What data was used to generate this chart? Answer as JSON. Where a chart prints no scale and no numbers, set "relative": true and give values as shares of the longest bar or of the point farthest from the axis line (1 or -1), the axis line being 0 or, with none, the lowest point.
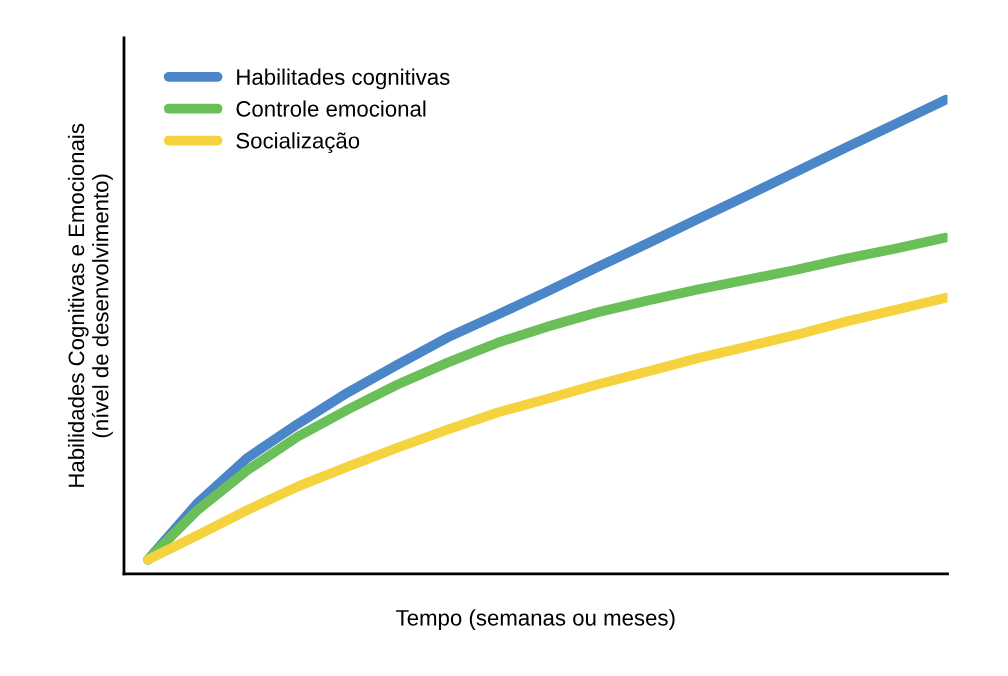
{
  "chart_data": {
    "type": "line",
    "relative": true,
    "xlabel": "Tempo (semanas ou meses)",
    "ylabel": "Habilidades Cognitivas e Emocionais\n(nível de desenvolvimento)",
    "categories": [
      null,
      null,
      null,
      null,
      null,
      null,
      null,
      null,
      null,
      null,
      null,
      null,
      null,
      null,
      null,
      null,
      null
    ],
    "series": [
      {
        "name": "Habilitades cognitivas",
        "color": "#4a86c8",
        "values": [
          0.03,
          0.15,
          0.245,
          0.316,
          0.382,
          0.441,
          0.498,
          0.546,
          0.595,
          0.646,
          0.696,
          0.747,
          0.797,
          0.848,
          0.899,
          0.949,
          1.0
        ]
      },
      {
        "name": "Controle emocional",
        "color": "#6bbf59",
        "values": [
          0.03,
          0.135,
          0.219,
          0.289,
          0.346,
          0.399,
          0.445,
          0.487,
          0.521,
          0.551,
          0.576,
          0.599,
          0.62,
          0.641,
          0.665,
          0.686,
          0.709
        ]
      },
      {
        "name": "Socialização",
        "color": "#f5d33f",
        "values": [
          0.03,
          0.082,
          0.135,
          0.184,
          0.226,
          0.266,
          0.304,
          0.34,
          0.369,
          0.399,
          0.426,
          0.454,
          0.479,
          0.504,
          0.532,
          0.557,
          0.582
        ]
      }
    ],
    "legend": "top left",
    "grid": false,
    "marker": "none",
    "line_style": "solid"
  }
}
